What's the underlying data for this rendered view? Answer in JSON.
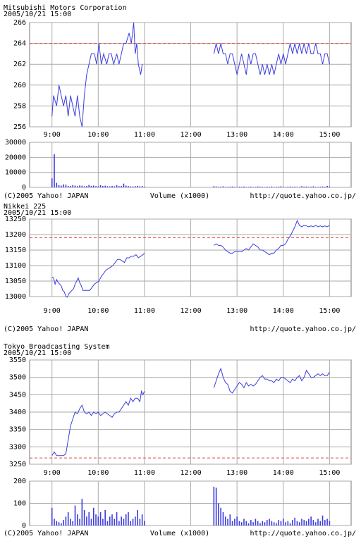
{
  "chart_data": [
    {
      "type": "line",
      "title": "Mitsubishi Motors Corporation",
      "subtitle": "2005/10/21 15:00",
      "color": "#3c3ce0",
      "grid": true,
      "ref_line": {
        "value": 264,
        "color": "#e04848"
      },
      "xlim": [
        511,
        928
      ],
      "ylim": [
        256,
        266
      ],
      "yticks": [
        256,
        258,
        260,
        262,
        264,
        266
      ],
      "xticks": [
        {
          "value": 540,
          "label": "9:00"
        },
        {
          "value": 600,
          "label": "10:00"
        },
        {
          "value": 660,
          "label": "11:00"
        },
        {
          "value": 720,
          "label": "12:00"
        },
        {
          "value": 780,
          "label": "13:00"
        },
        {
          "value": 840,
          "label": "14:00"
        },
        {
          "value": 900,
          "label": "15:00"
        }
      ],
      "x": [
        540,
        542,
        546,
        549,
        552,
        555,
        558,
        561,
        564,
        567,
        570,
        573,
        576,
        579,
        582,
        585,
        588,
        591,
        595,
        598,
        601,
        604,
        607,
        611,
        614,
        617,
        620,
        624,
        627,
        630,
        633,
        636,
        640,
        643,
        646,
        648,
        650,
        652,
        655,
        657,
        705,
        750,
        753,
        756,
        759,
        762,
        765,
        768,
        771,
        774,
        777,
        780,
        783,
        786,
        789,
        792,
        795,
        798,
        801,
        804,
        807,
        810,
        813,
        816,
        819,
        822,
        825,
        828,
        831,
        834,
        837,
        840,
        843,
        846,
        849,
        852,
        855,
        858,
        861,
        864,
        867,
        870,
        873,
        876,
        879,
        882,
        885,
        888,
        891,
        894,
        897,
        900
      ],
      "values": [
        257,
        259,
        258,
        260,
        259,
        258,
        259,
        257,
        259,
        258,
        257,
        259,
        257,
        256,
        259,
        261,
        262,
        263,
        263,
        262,
        264,
        262,
        263,
        262,
        263,
        263,
        262,
        263,
        262,
        263,
        264,
        264,
        265,
        264,
        266,
        263,
        264,
        262,
        261,
        262,
        null,
        263,
        264,
        263,
        264,
        263,
        263,
        262,
        263,
        263,
        262,
        261,
        262,
        263,
        262,
        261,
        263,
        262,
        263,
        263,
        262,
        261,
        262,
        261,
        262,
        261,
        262,
        261,
        262,
        263,
        262,
        263,
        262,
        263,
        264,
        263,
        264,
        263,
        264,
        263,
        264,
        263,
        264,
        263,
        263,
        264,
        263,
        263,
        262,
        263,
        263,
        262
      ]
    },
    {
      "type": "bar",
      "color": "#3c3ce0",
      "grid": true,
      "xlim": [
        511,
        928
      ],
      "ylim": [
        0,
        30000
      ],
      "yticks": [
        0,
        10000,
        20000,
        30000
      ],
      "footer_left": "(C)2005 Yahoo! JAPAN",
      "xlabel": "Volume (x1000)",
      "footer_right": "http://quote.yahoo.co.jp/",
      "x": [
        540,
        543,
        546,
        549,
        552,
        555,
        558,
        561,
        564,
        567,
        570,
        573,
        576,
        579,
        582,
        585,
        588,
        591,
        594,
        597,
        600,
        603,
        606,
        609,
        612,
        615,
        618,
        621,
        624,
        627,
        630,
        633,
        636,
        639,
        642,
        645,
        648,
        651,
        654,
        657,
        660,
        750,
        753,
        756,
        759,
        762,
        765,
        768,
        771,
        774,
        777,
        780,
        783,
        786,
        789,
        792,
        795,
        798,
        801,
        804,
        807,
        810,
        813,
        816,
        819,
        822,
        825,
        828,
        831,
        834,
        837,
        840,
        843,
        846,
        849,
        852,
        855,
        858,
        861,
        864,
        867,
        870,
        873,
        876,
        879,
        882,
        885,
        888,
        891,
        894,
        897,
        900
      ],
      "values": [
        6000,
        22000,
        3000,
        1500,
        1200,
        2000,
        1800,
        1000,
        900,
        1500,
        1200,
        800,
        1300,
        1100,
        700,
        900,
        1600,
        1000,
        1200,
        800,
        700,
        1500,
        900,
        1100,
        800,
        600,
        1000,
        700,
        1400,
        800,
        900,
        2500,
        1200,
        900,
        700,
        600,
        800,
        1000,
        700,
        900,
        500,
        800,
        600,
        400,
        500,
        700,
        300,
        400,
        500,
        600,
        400,
        300,
        500,
        400,
        600,
        300,
        400,
        500,
        300,
        400,
        600,
        500,
        400,
        300,
        500,
        400,
        600,
        300,
        400,
        500,
        700,
        400,
        300,
        500,
        600,
        400,
        500,
        300,
        400,
        800,
        500,
        600,
        400,
        500,
        700,
        400,
        300,
        500,
        600,
        400,
        1000,
        600
      ]
    },
    {
      "type": "line",
      "title": "Nikkei 225",
      "subtitle": "2005/10/21 15:00",
      "color": "#3c3ce0",
      "grid": true,
      "ref_line": {
        "value": 13190,
        "color": "#e04848"
      },
      "footer_left": "(C)2005 Yahoo! JAPAN",
      "footer_right": "http://quote.yahoo.co.jp/",
      "xlim": [
        511,
        928
      ],
      "ylim": [
        13000,
        13250
      ],
      "yticks": [
        13000,
        13050,
        13100,
        13150,
        13200,
        13250
      ],
      "xticks": [
        {
          "value": 540,
          "label": "9:00"
        },
        {
          "value": 600,
          "label": "10:00"
        },
        {
          "value": 660,
          "label": "11:00"
        },
        {
          "value": 720,
          "label": "12:00"
        },
        {
          "value": 780,
          "label": "13:00"
        },
        {
          "value": 840,
          "label": "14:00"
        },
        {
          "value": 900,
          "label": "15:00"
        }
      ],
      "x": [
        540,
        542,
        544,
        546,
        548,
        550,
        552,
        554,
        556,
        558,
        560,
        562,
        564,
        566,
        568,
        570,
        572,
        574,
        576,
        578,
        580,
        583,
        586,
        589,
        592,
        595,
        598,
        601,
        604,
        607,
        610,
        613,
        616,
        619,
        622,
        625,
        628,
        631,
        634,
        637,
        640,
        643,
        646,
        649,
        652,
        655,
        658,
        660,
        705,
        750,
        753,
        756,
        759,
        762,
        765,
        768,
        771,
        774,
        777,
        780,
        783,
        786,
        789,
        792,
        795,
        798,
        801,
        804,
        807,
        810,
        813,
        816,
        819,
        822,
        825,
        828,
        831,
        834,
        837,
        840,
        843,
        846,
        849,
        852,
        855,
        858,
        861,
        864,
        867,
        870,
        873,
        876,
        879,
        882,
        885,
        888,
        891,
        894,
        897,
        900
      ],
      "values": [
        13063,
        13060,
        13040,
        13055,
        13045,
        13040,
        13035,
        13020,
        13015,
        13000,
        12998,
        13010,
        13015,
        13020,
        13025,
        13040,
        13050,
        13060,
        13045,
        13035,
        13020,
        13020,
        13020,
        13020,
        13030,
        13040,
        13045,
        13050,
        13065,
        13075,
        13085,
        13090,
        13095,
        13100,
        13110,
        13120,
        13120,
        13115,
        13110,
        13125,
        13125,
        13130,
        13130,
        13135,
        13125,
        13130,
        13135,
        13140,
        null,
        13165,
        13170,
        13165,
        13165,
        13160,
        13150,
        13145,
        13140,
        13140,
        13145,
        13145,
        13145,
        13145,
        13150,
        13155,
        13150,
        13160,
        13170,
        13165,
        13160,
        13150,
        13150,
        13145,
        13140,
        13135,
        13140,
        13140,
        13150,
        13155,
        13165,
        13165,
        13170,
        13185,
        13195,
        13210,
        13225,
        13245,
        13230,
        13225,
        13230,
        13228,
        13225,
        13228,
        13225,
        13230,
        13225,
        13228,
        13225,
        13228,
        13225,
        13230
      ]
    },
    {
      "type": "line",
      "title": "Tokyo Broadcasting System",
      "subtitle": "2005/10/21 15:00",
      "color": "#3c3ce0",
      "grid": true,
      "ref_line": {
        "value": 3268,
        "color": "#e04848"
      },
      "xlim": [
        511,
        928
      ],
      "ylim": [
        3250,
        3550
      ],
      "yticks": [
        3250,
        3300,
        3350,
        3400,
        3450,
        3500,
        3550
      ],
      "xticks": [
        {
          "value": 540,
          "label": "9:00"
        },
        {
          "value": 600,
          "label": "10:00"
        },
        {
          "value": 660,
          "label": "11:00"
        },
        {
          "value": 720,
          "label": "12:00"
        },
        {
          "value": 780,
          "label": "13:00"
        },
        {
          "value": 840,
          "label": "14:00"
        },
        {
          "value": 900,
          "label": "15:00"
        }
      ],
      "x": [
        540,
        543,
        546,
        549,
        552,
        555,
        558,
        561,
        564,
        567,
        570,
        573,
        576,
        579,
        582,
        585,
        588,
        591,
        594,
        597,
        600,
        603,
        606,
        609,
        612,
        615,
        618,
        621,
        624,
        627,
        630,
        633,
        636,
        639,
        642,
        645,
        648,
        651,
        654,
        656,
        658,
        660,
        705,
        750,
        753,
        756,
        759,
        762,
        765,
        768,
        771,
        774,
        777,
        780,
        783,
        786,
        789,
        792,
        795,
        798,
        801,
        804,
        807,
        810,
        813,
        816,
        819,
        822,
        825,
        828,
        831,
        834,
        837,
        840,
        843,
        846,
        849,
        852,
        855,
        858,
        861,
        864,
        867,
        870,
        873,
        876,
        879,
        882,
        885,
        888,
        891,
        894,
        897,
        900
      ],
      "values": [
        3275,
        3285,
        3275,
        3275,
        3275,
        3275,
        3280,
        3320,
        3360,
        3380,
        3400,
        3395,
        3410,
        3420,
        3400,
        3395,
        3400,
        3390,
        3400,
        3395,
        3400,
        3390,
        3395,
        3400,
        3395,
        3390,
        3385,
        3395,
        3400,
        3400,
        3410,
        3420,
        3430,
        3420,
        3440,
        3430,
        3440,
        3440,
        3430,
        3460,
        3450,
        3460,
        null,
        3470,
        3490,
        3510,
        3525,
        3500,
        3485,
        3480,
        3460,
        3455,
        3465,
        3475,
        3485,
        3480,
        3470,
        3485,
        3475,
        3480,
        3475,
        3480,
        3490,
        3500,
        3505,
        3495,
        3495,
        3490,
        3490,
        3485,
        3495,
        3490,
        3500,
        3500,
        3495,
        3490,
        3485,
        3495,
        3490,
        3500,
        3505,
        3490,
        3500,
        3520,
        3510,
        3500,
        3500,
        3505,
        3510,
        3505,
        3510,
        3505,
        3505,
        3515
      ]
    },
    {
      "type": "bar",
      "color": "#3c3ce0",
      "grid": true,
      "xlim": [
        511,
        928
      ],
      "ylim": [
        0,
        200
      ],
      "yticks": [
        0,
        100,
        200
      ],
      "footer_left": "(C)2005 Yahoo! JAPAN",
      "xlabel": "Volume (x1000)",
      "footer_right": "http://quote.yahoo.co.jp/",
      "x": [
        540,
        543,
        546,
        549,
        552,
        555,
        558,
        561,
        564,
        567,
        570,
        573,
        576,
        579,
        582,
        585,
        588,
        591,
        594,
        597,
        600,
        603,
        606,
        609,
        612,
        615,
        618,
        621,
        624,
        627,
        630,
        633,
        636,
        639,
        642,
        645,
        648,
        651,
        654,
        657,
        660,
        750,
        753,
        756,
        759,
        762,
        765,
        768,
        771,
        774,
        777,
        780,
        783,
        786,
        789,
        792,
        795,
        798,
        801,
        804,
        807,
        810,
        813,
        816,
        819,
        822,
        825,
        828,
        831,
        834,
        837,
        840,
        843,
        846,
        849,
        852,
        855,
        858,
        861,
        864,
        867,
        870,
        873,
        876,
        879,
        882,
        885,
        888,
        891,
        894,
        897,
        900
      ],
      "values": [
        80,
        30,
        20,
        15,
        10,
        25,
        40,
        60,
        30,
        20,
        90,
        50,
        30,
        120,
        70,
        40,
        60,
        30,
        80,
        50,
        40,
        60,
        30,
        70,
        20,
        40,
        50,
        30,
        60,
        20,
        40,
        30,
        50,
        60,
        20,
        30,
        40,
        70,
        30,
        50,
        20,
        175,
        170,
        100,
        80,
        60,
        40,
        30,
        50,
        20,
        30,
        40,
        20,
        15,
        30,
        20,
        10,
        25,
        15,
        30,
        20,
        10,
        20,
        15,
        25,
        30,
        20,
        15,
        10,
        25,
        20,
        30,
        15,
        20,
        10,
        25,
        35,
        20,
        15,
        30,
        25,
        20,
        30,
        40,
        25,
        15,
        30,
        20,
        45,
        25,
        30,
        20
      ]
    }
  ]
}
